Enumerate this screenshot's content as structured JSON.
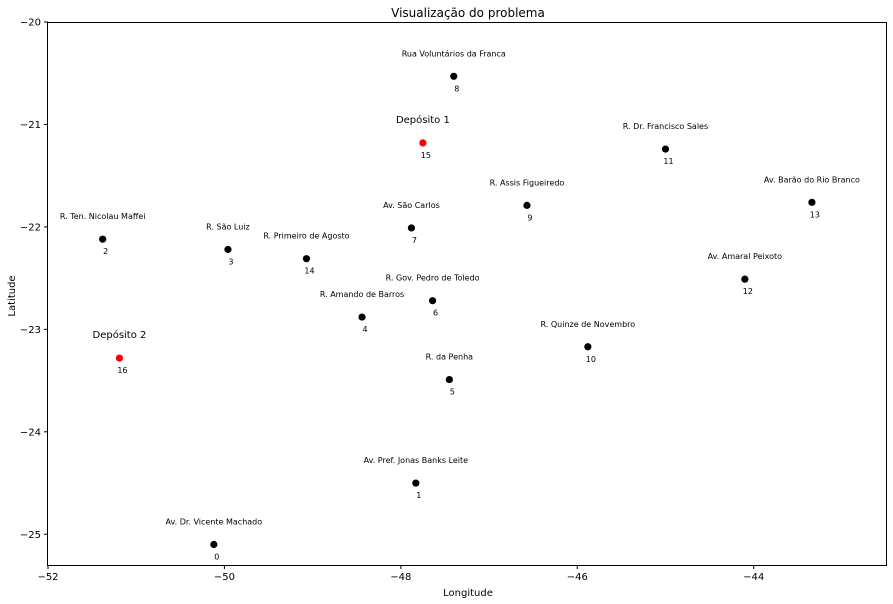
{
  "chart_data": {
    "type": "scatter",
    "title": "Visualização do problema",
    "xlabel": "Longitude",
    "ylabel": "Latitude",
    "xlim": [
      -52,
      -42.5
    ],
    "ylim": [
      -25.3,
      -20
    ],
    "xticks": [
      -52,
      -50,
      -48,
      -46,
      -44
    ],
    "yticks": [
      -20,
      -21,
      -22,
      -23,
      -24,
      -25
    ],
    "xtick_labels": [
      "−52",
      "−50",
      "−48",
      "−46",
      "−44"
    ],
    "ytick_labels": [
      "−20",
      "−21",
      "−22",
      "−23",
      "−24",
      "−25"
    ],
    "grid": false,
    "colors": {
      "client": "#000000",
      "depot": "#ff0000"
    },
    "points": [
      {
        "id": "0",
        "name": "Av. Dr. Vicente Machado",
        "x": -50.12,
        "y": -25.1,
        "kind": "client"
      },
      {
        "id": "1",
        "name": "Av. Pref. Jonas Banks Leite",
        "x": -47.83,
        "y": -24.5,
        "kind": "client"
      },
      {
        "id": "2",
        "name": "R. Ten. Nicolau Maffei",
        "x": -51.38,
        "y": -22.12,
        "kind": "client"
      },
      {
        "id": "3",
        "name": "R. São Luiz",
        "x": -49.96,
        "y": -22.22,
        "kind": "client"
      },
      {
        "id": "4",
        "name": "R. Amando de Barros",
        "x": -48.44,
        "y": -22.88,
        "kind": "client"
      },
      {
        "id": "5",
        "name": "R. da Penha",
        "x": -47.45,
        "y": -23.49,
        "kind": "client"
      },
      {
        "id": "6",
        "name": "R. Gov. Pedro de Toledo",
        "x": -47.64,
        "y": -22.72,
        "kind": "client"
      },
      {
        "id": "7",
        "name": "Av. São Carlos",
        "x": -47.88,
        "y": -22.01,
        "kind": "client"
      },
      {
        "id": "8",
        "name": "Rua Voluntários da Franca",
        "x": -47.4,
        "y": -20.53,
        "kind": "client"
      },
      {
        "id": "9",
        "name": "R. Assis Figueiredo",
        "x": -46.57,
        "y": -21.79,
        "kind": "client"
      },
      {
        "id": "10",
        "name": "R. Quinze de Novembro",
        "x": -45.88,
        "y": -23.17,
        "kind": "client"
      },
      {
        "id": "11",
        "name": "R. Dr. Francisco Sales",
        "x": -45.0,
        "y": -21.24,
        "kind": "client"
      },
      {
        "id": "12",
        "name": "Av. Amaral Peixoto",
        "x": -44.1,
        "y": -22.51,
        "kind": "client"
      },
      {
        "id": "13",
        "name": "Av. Barão do Rio Branco",
        "x": -43.34,
        "y": -21.76,
        "kind": "client"
      },
      {
        "id": "14",
        "name": "R. Primeiro de Agosto",
        "x": -49.07,
        "y": -22.31,
        "kind": "client"
      },
      {
        "id": "15",
        "name": "Depósito 1",
        "x": -47.75,
        "y": -21.18,
        "kind": "depot"
      },
      {
        "id": "16",
        "name": "Depósito 2",
        "x": -51.19,
        "y": -23.28,
        "kind": "depot"
      }
    ]
  }
}
